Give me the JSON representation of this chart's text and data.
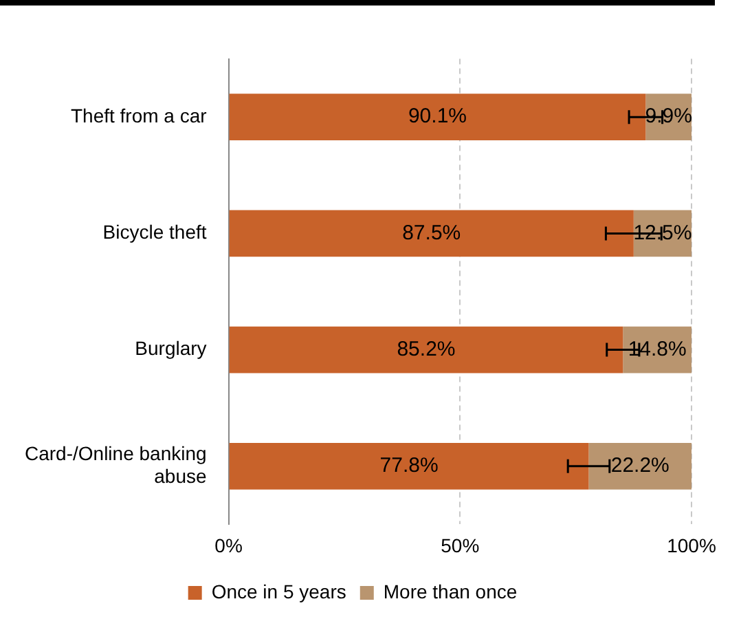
{
  "chart_data": {
    "type": "bar",
    "orientation": "horizontal",
    "stacked": true,
    "categories": [
      "Theft from a car",
      "Bicycle theft",
      "Burglary",
      "Card-/Online banking abuse"
    ],
    "series": [
      {
        "name": "Once in 5 years",
        "color": "#c8622a",
        "values": [
          90.1,
          87.5,
          85.2,
          77.8
        ],
        "value_labels": [
          "90.1%",
          "87.5%",
          "85.2%",
          "77.8%"
        ],
        "errors": [
          3.6,
          6,
          3.5,
          4.5
        ]
      },
      {
        "name": "More than once",
        "color": "#b9956f",
        "values": [
          9.9,
          12.5,
          14.8,
          22.2
        ],
        "value_labels": [
          "9.9%",
          "12.5%",
          "14.8%",
          "22.2%"
        ]
      }
    ],
    "xlim": [
      0,
      100
    ],
    "xticks": [
      {
        "value": 0,
        "label": "0%"
      },
      {
        "value": 50,
        "label": "50%"
      },
      {
        "value": 100,
        "label": "100%"
      }
    ],
    "grid": "x",
    "legend": "bottom"
  }
}
